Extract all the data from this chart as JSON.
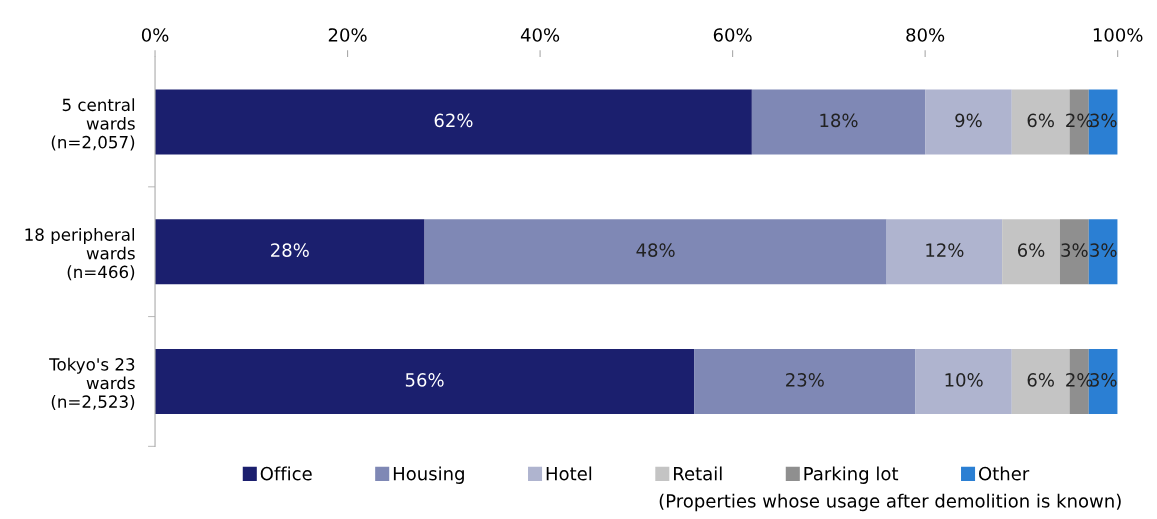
{
  "chart_data": {
    "type": "bar",
    "orientation": "horizontal",
    "stacked": true,
    "categories": [
      "5 central\nwards\n(n=2,057)",
      "18 peripheral\nwards\n(n=466)",
      "Tokyo's 23\nwards\n(n=2,523)"
    ],
    "series": [
      {
        "name": "Office",
        "color": "#1b1f6e",
        "values": [
          62,
          28,
          56
        ],
        "value_labels": [
          "62%",
          "28%",
          "56%"
        ]
      },
      {
        "name": "Housing",
        "color": "#7f88b5",
        "values": [
          18,
          48,
          23
        ],
        "value_labels": [
          "18%",
          "48%",
          "23%"
        ]
      },
      {
        "name": "Hotel",
        "color": "#afb4cf",
        "values": [
          9,
          12,
          10
        ],
        "value_labels": [
          "9%",
          "12%",
          "10%"
        ]
      },
      {
        "name": "Retail",
        "color": "#c4c4c4",
        "values": [
          6,
          6,
          6
        ],
        "value_labels": [
          "6%",
          "6%",
          "6%"
        ]
      },
      {
        "name": "Parking lot",
        "color": "#8f8f8f",
        "values": [
          2,
          3,
          2
        ],
        "value_labels": [
          "2%",
          "3%",
          "2%"
        ]
      },
      {
        "name": "Other",
        "color": "#2b7fd3",
        "values": [
          3,
          3,
          3
        ],
        "value_labels": [
          "3%",
          "3%",
          "3%"
        ]
      }
    ],
    "xlim": [
      0,
      100
    ],
    "xticks": [
      {
        "value": 0,
        "label": "0%"
      },
      {
        "value": 20,
        "label": "20%"
      },
      {
        "value": 40,
        "label": "40%"
      },
      {
        "value": 60,
        "label": "60%"
      },
      {
        "value": 80,
        "label": "80%"
      },
      {
        "value": 100,
        "label": "100%"
      }
    ],
    "grid": false,
    "legend": "bottom",
    "annotations": [
      "(Properties whose usage after demolition is known)"
    ]
  }
}
